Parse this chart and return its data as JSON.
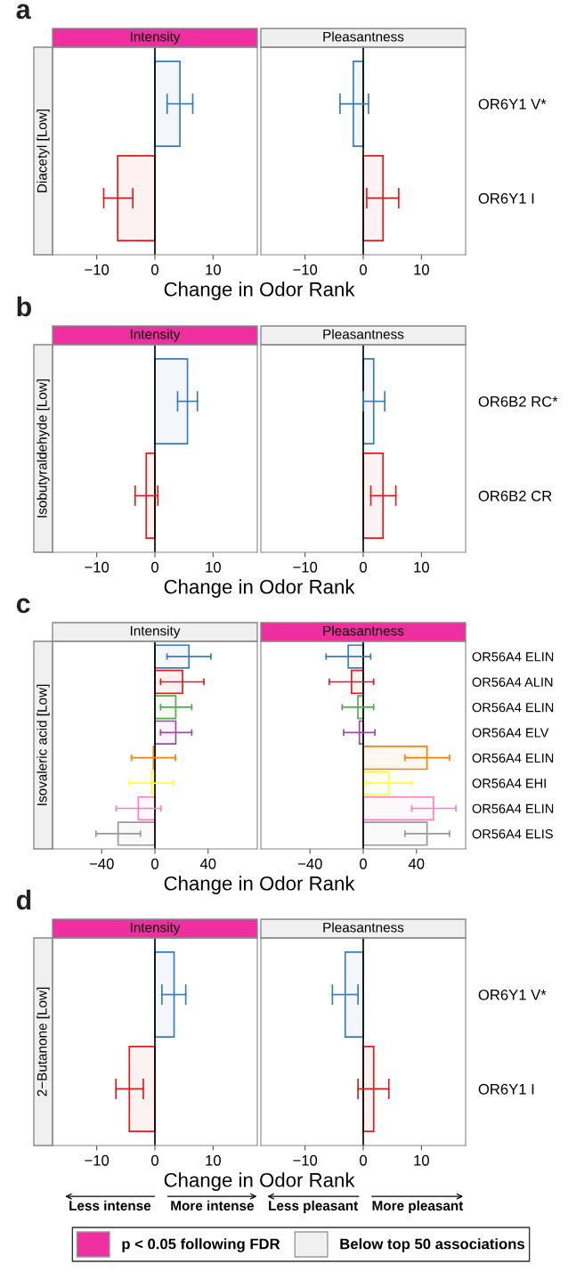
{
  "chart_data": [
    {
      "type": "bar",
      "orientation": "horizontal",
      "title": "Intensity",
      "ylabel": "Diacetyl [Low]",
      "xlabel": "Change in Odor Rank",
      "annotations": [
        "a"
      ],
      "categories": [
        null,
        null
      ],
      "series": [
        {
          "colors": [
            "#377eb8",
            "#e41a1c"
          ],
          "values": [
            4.3,
            -6.4
          ],
          "errors": [
            [
              2.1,
              6.5
            ],
            [
              -8.8,
              -3.8
            ]
          ]
        }
      ],
      "xlim": [
        -17.6,
        17.6
      ],
      "xticks": [
        -10,
        0,
        10
      ],
      "ref_lines": [
        {
          "axis": "x",
          "value": 0,
          "color": "#000000"
        }
      ],
      "color": "#ee2fa0"
    },
    {
      "type": "bar",
      "orientation": "horizontal",
      "title": "Pleasantness",
      "categories": [
        "OR6Y1 V*",
        "OR6Y1 I"
      ],
      "series": [
        {
          "colors": [
            "#377eb8",
            "#e41a1c"
          ],
          "values": [
            -1.7,
            3.4
          ],
          "errors": [
            [
              -4.0,
              0.9
            ],
            [
              0.6,
              6.1
            ]
          ]
        }
      ],
      "xlim": [
        -17.6,
        17.6
      ],
      "xticks": [
        -10,
        0,
        10
      ],
      "ref_lines": [
        {
          "axis": "x",
          "value": 0,
          "color": "#000000"
        }
      ],
      "color": "#f0f0f0"
    },
    {
      "type": "bar",
      "orientation": "horizontal",
      "title": "Intensity",
      "ylabel": "Isobutyraldehyde [Low]",
      "xlabel": "Change in Odor Rank",
      "annotations": [
        "b"
      ],
      "categories": [
        null,
        null
      ],
      "series": [
        {
          "colors": [
            "#377eb8",
            "#e41a1c"
          ],
          "values": [
            5.6,
            -1.5
          ],
          "errors": [
            [
              3.9,
              7.3
            ],
            [
              -3.4,
              0.5
            ]
          ]
        }
      ],
      "xlim": [
        -17.6,
        17.6
      ],
      "xticks": [
        -10,
        0,
        10
      ],
      "ref_lines": [
        {
          "axis": "x",
          "value": 0,
          "color": "#000000"
        }
      ],
      "color": "#ee2fa0"
    },
    {
      "type": "bar",
      "orientation": "horizontal",
      "title": "Pleasantness",
      "categories": [
        "OR6B2 RC*",
        "OR6B2 CR"
      ],
      "series": [
        {
          "colors": [
            "#377eb8",
            "#e41a1c"
          ],
          "values": [
            1.8,
            3.4
          ],
          "errors": [
            [
              0.0,
              3.7
            ],
            [
              1.3,
              5.6
            ]
          ]
        }
      ],
      "xlim": [
        -17.6,
        17.6
      ],
      "xticks": [
        -10,
        0,
        10
      ],
      "ref_lines": [
        {
          "axis": "x",
          "value": 0,
          "color": "#000000"
        }
      ],
      "color": "#f0f0f0"
    },
    {
      "type": "bar",
      "orientation": "horizontal",
      "title": "Intensity",
      "ylabel": "Isovaleric acid [Low]",
      "xlabel": "Change in Odor Rank",
      "annotations": [
        "c"
      ],
      "categories": [
        null,
        null,
        null,
        null,
        null,
        null,
        null,
        null
      ],
      "series": [
        {
          "colors": [
            "#377eb8",
            "#e41a1c",
            "#4daf4a",
            "#984ea3",
            "#ff7f00",
            "#ffff33",
            "#f781bf",
            "#999999"
          ],
          "values": [
            25.6,
            20.8,
            15.7,
            15.7,
            -1.1,
            -2.4,
            -12.5,
            -27.7
          ],
          "errors": [
            [
              9.1,
              42.1
            ],
            [
              4.3,
              36.8
            ],
            [
              4.3,
              27.7
            ],
            [
              4.3,
              27.7
            ],
            [
              -17.6,
              15.5
            ],
            [
              -19.2,
              14.1
            ],
            [
              -29.1,
              4.5
            ],
            [
              -44.3,
              -10.9
            ]
          ]
        }
      ],
      "xlim": [
        -77,
        77
      ],
      "xticks": [
        -40,
        0,
        40
      ],
      "ref_lines": [
        {
          "axis": "x",
          "value": 0,
          "color": "#000000"
        }
      ],
      "color": "#f0f0f0"
    },
    {
      "type": "bar",
      "orientation": "horizontal",
      "title": "Pleasantness",
      "categories": [
        "OR56A4 ELIN",
        "OR56A4 ALIN",
        "OR56A4 ELIN",
        "OR56A4 ELV",
        "OR56A4 ELIN",
        "OR56A4 EHI",
        "OR56A4 ELIN",
        "OR56A4 ELIS"
      ],
      "series": [
        {
          "colors": [
            "#377eb8",
            "#e41a1c",
            "#4daf4a",
            "#984ea3",
            "#ff7f00",
            "#ffff33",
            "#f781bf",
            "#999999"
          ],
          "values": [
            -11.3,
            -8.8,
            -4.0,
            -2.9,
            48.0,
            19.3,
            52.8,
            48.0
          ],
          "errors": [
            [
              -27.9,
              5.6
            ],
            [
              -25.5,
              7.8
            ],
            [
              -15.8,
              7.8
            ],
            [
              -14.7,
              8.8
            ],
            [
              31.4,
              64.9
            ],
            [
              2.4,
              36.2
            ],
            [
              36.5,
              69.7
            ],
            [
              31.4,
              64.9
            ]
          ]
        }
      ],
      "xlim": [
        -77,
        77
      ],
      "xticks": [
        -40,
        0,
        40
      ],
      "ref_lines": [
        {
          "axis": "x",
          "value": 0,
          "color": "#000000"
        }
      ],
      "color": "#ee2fa0"
    },
    {
      "type": "bar",
      "orientation": "horizontal",
      "title": "Intensity",
      "ylabel": "2−Butanone [Low]",
      "xlabel": "Change in Odor Rank",
      "annotations": [
        "d",
        "Less intense",
        "More intense"
      ],
      "categories": [
        null,
        null
      ],
      "series": [
        {
          "colors": [
            "#377eb8",
            "#e41a1c"
          ],
          "values": [
            3.3,
            -4.4
          ],
          "errors": [
            [
              1.2,
              5.3
            ],
            [
              -6.7,
              -2.0
            ]
          ]
        }
      ],
      "xlim": [
        -17.6,
        17.6
      ],
      "xticks": [
        -10,
        0,
        10
      ],
      "ref_lines": [
        {
          "axis": "x",
          "value": 0,
          "color": "#000000"
        }
      ],
      "color": "#ee2fa0"
    },
    {
      "type": "bar",
      "orientation": "horizontal",
      "title": "Pleasantness",
      "annotations": [
        "Less pleasant",
        "More pleasant"
      ],
      "categories": [
        "OR6Y1 V*",
        "OR6Y1 I"
      ],
      "series": [
        {
          "colors": [
            "#377eb8",
            "#e41a1c"
          ],
          "values": [
            -3.1,
            1.8
          ],
          "errors": [
            [
              -5.3,
              -0.9
            ],
            [
              -0.9,
              4.4
            ]
          ]
        }
      ],
      "xlim": [
        -17.6,
        17.6
      ],
      "xticks": [
        -10,
        0,
        10
      ],
      "ref_lines": [
        {
          "axis": "x",
          "value": 0,
          "color": "#000000"
        }
      ],
      "color": "#f0f0f0"
    },
    {
      "type": "other",
      "legend": "bottom",
      "series": [
        {
          "name": "p < 0.05 following FDR",
          "color": "#ee2fa0"
        },
        {
          "name": "Below top 50 associations",
          "color": "#f0f0f0"
        }
      ]
    }
  ]
}
